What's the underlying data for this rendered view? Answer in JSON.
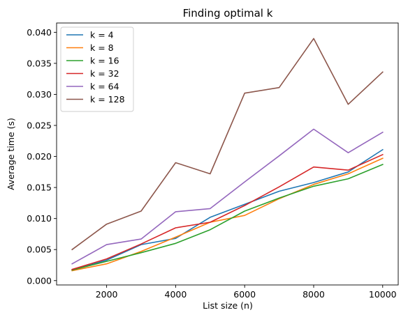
{
  "chart_data": {
    "type": "line",
    "title": "Finding optimal k",
    "xlabel": "List size (n)",
    "ylabel": "Average time (s)",
    "xlim": [
      550,
      10450
    ],
    "ylim": [
      -0.0007,
      0.0415
    ],
    "xticks": [
      2000,
      4000,
      6000,
      8000,
      10000
    ],
    "xtick_labels": [
      "2000",
      "4000",
      "6000",
      "8000",
      "10000"
    ],
    "yticks": [
      0.0,
      0.005,
      0.01,
      0.015,
      0.02,
      0.025,
      0.03,
      0.035,
      0.04
    ],
    "ytick_labels": [
      "0.000",
      "0.005",
      "0.010",
      "0.015",
      "0.020",
      "0.025",
      "0.030",
      "0.035",
      "0.040"
    ],
    "grid": false,
    "legend_position": "top-left",
    "x": [
      1000,
      2000,
      3000,
      4000,
      5000,
      6000,
      7000,
      8000,
      9000,
      10000
    ],
    "series": [
      {
        "name": "k = 4",
        "color": "#1f77b4",
        "values": [
          0.0017,
          0.0033,
          0.0058,
          0.0068,
          0.0102,
          0.0123,
          0.0144,
          0.0158,
          0.0175,
          0.0211
        ]
      },
      {
        "name": "k = 8",
        "color": "#ff7f0e",
        "values": [
          0.0016,
          0.0027,
          0.0047,
          0.007,
          0.0094,
          0.0105,
          0.0132,
          0.0155,
          0.0172,
          0.0197
        ]
      },
      {
        "name": "k = 16",
        "color": "#2ca02c",
        "values": [
          0.0017,
          0.0031,
          0.0045,
          0.006,
          0.0082,
          0.0112,
          0.0133,
          0.0152,
          0.0164,
          0.0187
        ]
      },
      {
        "name": "k = 32",
        "color": "#d62728",
        "values": [
          0.0018,
          0.0035,
          0.0059,
          0.0085,
          0.0094,
          0.0121,
          0.0151,
          0.0183,
          0.0178,
          0.0203
        ]
      },
      {
        "name": "k = 64",
        "color": "#9467bd",
        "values": [
          0.0027,
          0.0058,
          0.0067,
          0.0111,
          0.0116,
          0.0159,
          0.0201,
          0.0244,
          0.0206,
          0.0239
        ]
      },
      {
        "name": "k = 128",
        "color": "#8c564b",
        "values": [
          0.005,
          0.0091,
          0.0112,
          0.019,
          0.0172,
          0.0302,
          0.0311,
          0.039,
          0.0284,
          0.0336
        ]
      }
    ]
  }
}
